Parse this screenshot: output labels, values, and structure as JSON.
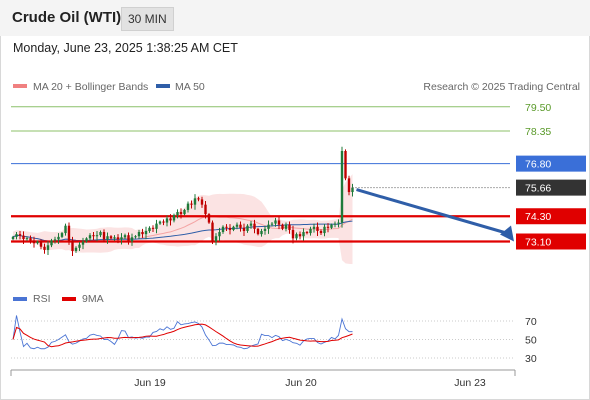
{
  "header": {
    "title": "Crude Oil (WTI)",
    "interval": "30 MIN",
    "timestamp": "Monday, June 23, 2025 1:38:25 AM CET"
  },
  "legend": {
    "ma20_label": "MA 20 + Bollinger Bands",
    "ma50_label": "MA 50",
    "credit": "Research © 2025 Trading Central"
  },
  "colors": {
    "ma20_legend": "#f08080",
    "ma50": "#2f5ea8",
    "bollinger_fill": "#fbe3e3",
    "resistance": "#8cc06a",
    "pivot": "#3a6fd8",
    "support": "#e00000",
    "last_price": "#333333",
    "candle_up": "#1f7a3a",
    "candle_down": "#c00000",
    "rsi": "#4a74d4",
    "rsi_ma": "#e00000",
    "arrow": "#2f5ea8"
  },
  "chart_data": [
    {
      "type": "candlestick",
      "instrument": "Crude Oil (WTI)",
      "timeframe": "30 MIN",
      "ylim": [
        72.3,
        79.8
      ],
      "x_ticks": [
        "Jun 19",
        "Jun 20",
        "Jun 23"
      ],
      "levels": [
        {
          "value": 79.5,
          "label": "79.50",
          "kind": "resistance"
        },
        {
          "value": 78.35,
          "label": "78.35",
          "kind": "resistance"
        },
        {
          "value": 76.8,
          "label": "76.80",
          "kind": "pivot"
        },
        {
          "value": 75.66,
          "label": "75.66",
          "kind": "last"
        },
        {
          "value": 74.3,
          "label": "74.30",
          "kind": "support"
        },
        {
          "value": 73.1,
          "label": "73.10",
          "kind": "support"
        }
      ],
      "last_price": 75.66,
      "forecast_arrow": {
        "from": 75.66,
        "to": 73.1
      },
      "close": [
        73.32,
        73.45,
        73.38,
        73.22,
        73.26,
        73.15,
        73.02,
        73.1,
        72.85,
        72.7,
        72.92,
        73.15,
        73.2,
        73.32,
        73.5,
        73.85,
        73.12,
        72.65,
        72.8,
        72.95,
        73.1,
        73.25,
        73.4,
        73.35,
        73.4,
        73.55,
        73.2,
        73.35,
        73.25,
        73.3,
        73.2,
        73.3,
        73.4,
        73.1,
        73.3,
        73.35,
        73.55,
        73.45,
        73.6,
        73.75,
        73.7,
        73.95,
        74.05,
        74.0,
        74.2,
        74.1,
        74.35,
        74.5,
        74.4,
        74.6,
        74.9,
        74.85,
        75.15,
        75.1,
        74.85,
        74.4,
        74.0,
        73.1,
        73.35,
        73.55,
        73.8,
        73.75,
        73.65,
        73.8,
        73.9,
        73.75,
        73.6,
        73.85,
        73.95,
        73.7,
        73.45,
        73.6,
        73.7,
        73.9,
        73.95,
        74.1,
        73.9,
        73.7,
        73.9,
        73.65,
        73.25,
        73.45,
        73.35,
        73.55,
        73.5,
        73.7,
        73.8,
        73.6,
        73.5,
        73.8,
        73.75,
        73.9,
        73.95,
        74.0,
        77.4,
        76.1,
        75.45,
        75.66
      ],
      "rsi": {
        "ylim": [
          20,
          80
        ],
        "ticks": [
          70,
          50,
          30
        ],
        "legend": [
          "RSI",
          "9MA"
        ]
      }
    }
  ]
}
